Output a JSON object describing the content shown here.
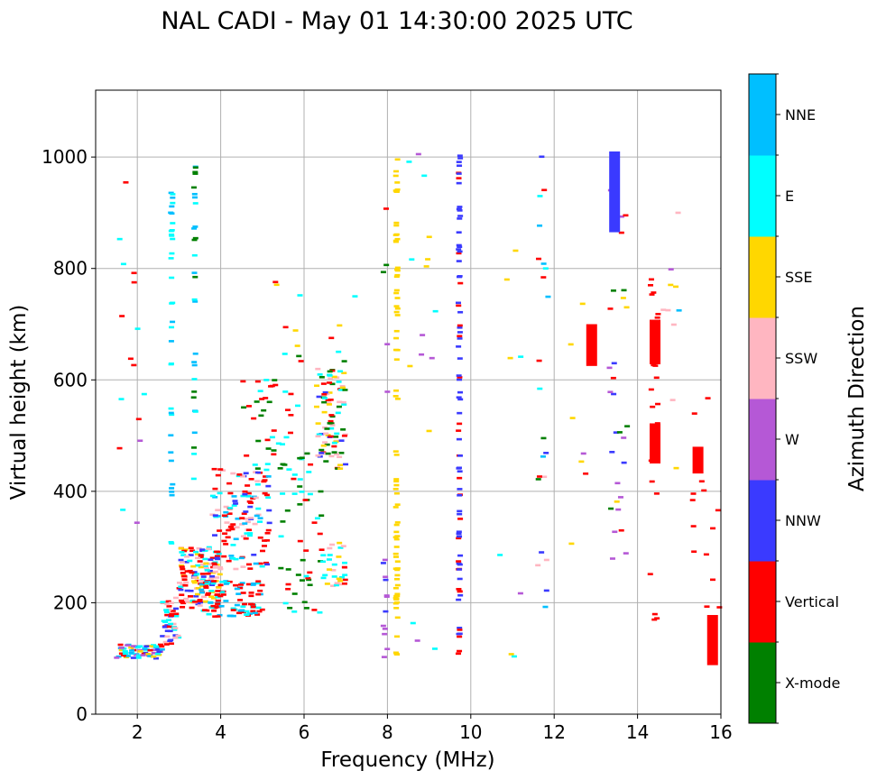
{
  "chart_data": {
    "type": "scatter",
    "title": "NAL CADI - May 01 14:30:00 2025 UTC",
    "xlabel": "Frequency (MHz)",
    "ylabel": "Virtual height (km)",
    "xlim": [
      1,
      16
    ],
    "ylim": [
      0,
      1120
    ],
    "xticks": [
      2,
      4,
      6,
      8,
      10,
      12,
      14,
      16
    ],
    "yticks": [
      0,
      200,
      400,
      600,
      800,
      1000
    ],
    "grid": true,
    "colorbar": {
      "label": "Azimuth Direction",
      "categories": [
        {
          "name": "X-mode",
          "color": "#008000"
        },
        {
          "name": "Vertical",
          "color": "#ff0000"
        },
        {
          "name": "NNW",
          "color": "#3a3aff"
        },
        {
          "name": "W",
          "color": "#b558d6"
        },
        {
          "name": "SSW",
          "color": "#ffb6c1"
        },
        {
          "name": "SSE",
          "color": "#ffd700"
        },
        {
          "name": "E",
          "color": "#00ffff"
        },
        {
          "name": "NNE",
          "color": "#00bfff"
        }
      ]
    },
    "vertical_bars": [
      {
        "x": 12.9,
        "y0": 625,
        "y1": 700,
        "azimuth": "Vertical"
      },
      {
        "x": 13.45,
        "y0": 865,
        "y1": 1010,
        "azimuth": "NNW"
      },
      {
        "x": 14.42,
        "y0": 628,
        "y1": 708,
        "azimuth": "Vertical"
      },
      {
        "x": 14.42,
        "y0": 450,
        "y1": 522,
        "azimuth": "Vertical"
      },
      {
        "x": 15.45,
        "y0": 432,
        "y1": 480,
        "azimuth": "Vertical"
      },
      {
        "x": 15.8,
        "y0": 88,
        "y1": 178,
        "azimuth": "Vertical"
      }
    ],
    "point_segments": [
      {
        "x0": 1.5,
        "x1": 2.6,
        "y0": 100,
        "y1": 125,
        "n": 70,
        "azimuths": [
          "NNW",
          "E",
          "NNE",
          "Vertical",
          "SSE",
          "W"
        ]
      },
      {
        "x0": 2.6,
        "x1": 3.0,
        "y0": 125,
        "y1": 210,
        "n": 45,
        "azimuths": [
          "Vertical",
          "E",
          "SSW",
          "NNW"
        ]
      },
      {
        "x0": 3.0,
        "x1": 4.0,
        "y0": 190,
        "y1": 300,
        "n": 150,
        "azimuths": [
          "Vertical",
          "Vertical",
          "E",
          "SSW",
          "NNW",
          "SSE"
        ]
      },
      {
        "x0": 3.5,
        "x1": 5.0,
        "y0": 175,
        "y1": 240,
        "n": 90,
        "azimuths": [
          "Vertical",
          "Vertical",
          "E",
          "NNE"
        ]
      },
      {
        "x0": 3.8,
        "x1": 5.2,
        "y0": 260,
        "y1": 440,
        "n": 130,
        "azimuths": [
          "Vertical",
          "Vertical",
          "E",
          "NNE",
          "NNW",
          "SSW"
        ]
      },
      {
        "x0": 4.5,
        "x1": 6.0,
        "y0": 440,
        "y1": 600,
        "n": 40,
        "azimuths": [
          "Vertical",
          "E",
          "X-mode"
        ]
      },
      {
        "x0": 5.4,
        "x1": 6.5,
        "y0": 180,
        "y1": 470,
        "n": 50,
        "azimuths": [
          "X-mode",
          "X-mode",
          "Vertical",
          "E"
        ]
      },
      {
        "x0": 6.3,
        "x1": 7.0,
        "y0": 440,
        "y1": 620,
        "n": 90,
        "azimuths": [
          "X-mode",
          "SSE",
          "E",
          "Vertical",
          "NNW",
          "SSW"
        ]
      },
      {
        "x0": 6.4,
        "x1": 7.0,
        "y0": 230,
        "y1": 310,
        "n": 30,
        "azimuths": [
          "E",
          "SSW",
          "SSE",
          "Vertical"
        ]
      },
      {
        "x0": 1.5,
        "x1": 2.2,
        "y0": 340,
        "y1": 960,
        "n": 16,
        "azimuths": [
          "W",
          "Vertical",
          "E"
        ]
      },
      {
        "x0": 2.8,
        "x1": 2.85,
        "y0": 300,
        "y1": 990,
        "n": 35,
        "azimuths": [
          "E",
          "NNE"
        ]
      },
      {
        "x0": 3.35,
        "x1": 3.4,
        "y0": 420,
        "y1": 990,
        "n": 30,
        "azimuths": [
          "E",
          "NNE",
          "X-mode"
        ]
      },
      {
        "x0": 5.0,
        "x1": 7.5,
        "y0": 590,
        "y1": 800,
        "n": 14,
        "azimuths": [
          "Vertical",
          "E",
          "X-mode",
          "SSE"
        ]
      },
      {
        "x0": 7.9,
        "x1": 8.0,
        "y0": 560,
        "y1": 920,
        "n": 5,
        "azimuths": [
          "W",
          "Vertical",
          "X-mode"
        ]
      },
      {
        "x0": 7.9,
        "x1": 8.0,
        "y0": 100,
        "y1": 290,
        "n": 12,
        "azimuths": [
          "W",
          "NNW"
        ]
      },
      {
        "x0": 8.2,
        "x1": 8.25,
        "y0": 100,
        "y1": 1000,
        "n": 75,
        "azimuths": [
          "SSE"
        ]
      },
      {
        "x0": 8.5,
        "x1": 9.2,
        "y0": 90,
        "y1": 1020,
        "n": 16,
        "azimuths": [
          "SSE",
          "W",
          "E"
        ]
      },
      {
        "x0": 9.7,
        "x1": 9.75,
        "y0": 95,
        "y1": 1010,
        "n": 80,
        "azimuths": [
          "NNW",
          "Vertical",
          "NNW"
        ]
      },
      {
        "x0": 10.5,
        "x1": 11.3,
        "y0": 85,
        "y1": 850,
        "n": 8,
        "azimuths": [
          "E",
          "SSE",
          "SSW",
          "W"
        ]
      },
      {
        "x0": 11.6,
        "x1": 11.9,
        "y0": 160,
        "y1": 1010,
        "n": 22,
        "azimuths": [
          "X-mode",
          "Vertical",
          "E",
          "NNE",
          "SSW",
          "NNW"
        ]
      },
      {
        "x0": 12.4,
        "x1": 13.2,
        "y0": 255,
        "y1": 935,
        "n": 8,
        "azimuths": [
          "SSE",
          "Vertical",
          "W"
        ]
      },
      {
        "x0": 13.3,
        "x1": 13.8,
        "y0": 260,
        "y1": 1000,
        "n": 30,
        "azimuths": [
          "NNW",
          "W",
          "X-mode",
          "Vertical",
          "SSE"
        ]
      },
      {
        "x0": 14.3,
        "x1": 14.5,
        "y0": 165,
        "y1": 820,
        "n": 22,
        "azimuths": [
          "Vertical"
        ]
      },
      {
        "x0": 14.6,
        "x1": 15.0,
        "y0": 130,
        "y1": 985,
        "n": 10,
        "azimuths": [
          "SSW",
          "SSE",
          "NNE",
          "W",
          "E"
        ]
      },
      {
        "x0": 15.3,
        "x1": 16.0,
        "y0": 175,
        "y1": 600,
        "n": 14,
        "azimuths": [
          "Vertical"
        ]
      }
    ]
  }
}
